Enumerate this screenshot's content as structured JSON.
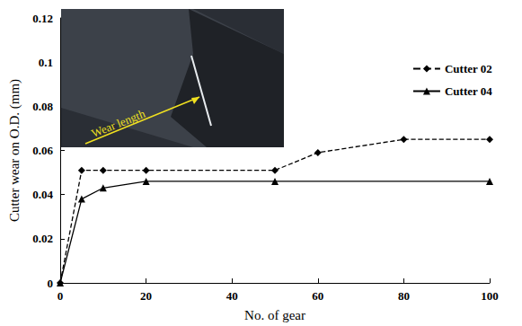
{
  "chart_data": {
    "type": "line",
    "x_label": "No. of gear",
    "y_label": "Cutter wear on O.D. (mm)",
    "annotations": [
      "Wear length"
    ],
    "series": [
      {
        "name": "Cutter 02",
        "color": "#000000",
        "marker": "diamond",
        "line_style": "dashed",
        "x": [
          0,
          5,
          10,
          20,
          50,
          60,
          80,
          100
        ],
        "values": [
          0,
          0.051,
          0.051,
          0.051,
          0.051,
          0.059,
          0.065,
          0.065
        ]
      },
      {
        "name": "Cutter 04",
        "color": "#000000",
        "marker": "triangle",
        "line_style": "solid",
        "x": [
          0,
          5,
          10,
          20,
          50,
          100
        ],
        "values": [
          0,
          0.038,
          0.043,
          0.046,
          0.046,
          0.046
        ]
      }
    ],
    "xlim": [
      0,
      100
    ],
    "xticks": [
      0,
      20,
      40,
      60,
      80,
      100
    ],
    "ylim": [
      0,
      0.12
    ],
    "yticks": [
      0,
      0.02,
      0.04,
      0.06,
      0.08,
      0.1,
      0.12
    ],
    "grid": false,
    "legend": "upper right"
  }
}
